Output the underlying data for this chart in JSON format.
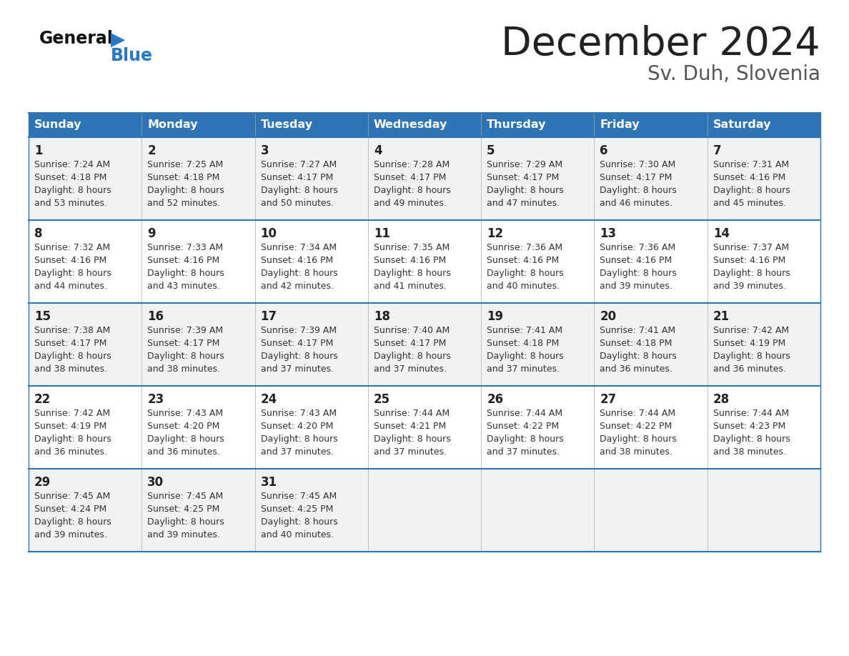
{
  "title": "December 2024",
  "subtitle": "Sv. Duh, Slovenia",
  "header_color": "#2e75b6",
  "header_text_color": "#ffffff",
  "cell_bg_odd": "#f2f2f2",
  "cell_bg_even": "#ffffff",
  "day_number_color": "#222222",
  "info_text_color": "#333333",
  "border_color": "#2e75b6",
  "separator_color": "#aaaaaa",
  "bg_color": "#ffffff",
  "logo_black": "#111111",
  "logo_blue": "#2878c8",
  "days_of_week": [
    "Sunday",
    "Monday",
    "Tuesday",
    "Wednesday",
    "Thursday",
    "Friday",
    "Saturday"
  ],
  "weeks": [
    [
      {
        "day": 1,
        "sunrise": "7:24 AM",
        "sunset": "4:18 PM",
        "daylight": "8 hours and 53 minutes."
      },
      {
        "day": 2,
        "sunrise": "7:25 AM",
        "sunset": "4:18 PM",
        "daylight": "8 hours and 52 minutes."
      },
      {
        "day": 3,
        "sunrise": "7:27 AM",
        "sunset": "4:17 PM",
        "daylight": "8 hours and 50 minutes."
      },
      {
        "day": 4,
        "sunrise": "7:28 AM",
        "sunset": "4:17 PM",
        "daylight": "8 hours and 49 minutes."
      },
      {
        "day": 5,
        "sunrise": "7:29 AM",
        "sunset": "4:17 PM",
        "daylight": "8 hours and 47 minutes."
      },
      {
        "day": 6,
        "sunrise": "7:30 AM",
        "sunset": "4:17 PM",
        "daylight": "8 hours and 46 minutes."
      },
      {
        "day": 7,
        "sunrise": "7:31 AM",
        "sunset": "4:16 PM",
        "daylight": "8 hours and 45 minutes."
      }
    ],
    [
      {
        "day": 8,
        "sunrise": "7:32 AM",
        "sunset": "4:16 PM",
        "daylight": "8 hours and 44 minutes."
      },
      {
        "day": 9,
        "sunrise": "7:33 AM",
        "sunset": "4:16 PM",
        "daylight": "8 hours and 43 minutes."
      },
      {
        "day": 10,
        "sunrise": "7:34 AM",
        "sunset": "4:16 PM",
        "daylight": "8 hours and 42 minutes."
      },
      {
        "day": 11,
        "sunrise": "7:35 AM",
        "sunset": "4:16 PM",
        "daylight": "8 hours and 41 minutes."
      },
      {
        "day": 12,
        "sunrise": "7:36 AM",
        "sunset": "4:16 PM",
        "daylight": "8 hours and 40 minutes."
      },
      {
        "day": 13,
        "sunrise": "7:36 AM",
        "sunset": "4:16 PM",
        "daylight": "8 hours and 39 minutes."
      },
      {
        "day": 14,
        "sunrise": "7:37 AM",
        "sunset": "4:16 PM",
        "daylight": "8 hours and 39 minutes."
      }
    ],
    [
      {
        "day": 15,
        "sunrise": "7:38 AM",
        "sunset": "4:17 PM",
        "daylight": "8 hours and 38 minutes."
      },
      {
        "day": 16,
        "sunrise": "7:39 AM",
        "sunset": "4:17 PM",
        "daylight": "8 hours and 38 minutes."
      },
      {
        "day": 17,
        "sunrise": "7:39 AM",
        "sunset": "4:17 PM",
        "daylight": "8 hours and 37 minutes."
      },
      {
        "day": 18,
        "sunrise": "7:40 AM",
        "sunset": "4:17 PM",
        "daylight": "8 hours and 37 minutes."
      },
      {
        "day": 19,
        "sunrise": "7:41 AM",
        "sunset": "4:18 PM",
        "daylight": "8 hours and 37 minutes."
      },
      {
        "day": 20,
        "sunrise": "7:41 AM",
        "sunset": "4:18 PM",
        "daylight": "8 hours and 36 minutes."
      },
      {
        "day": 21,
        "sunrise": "7:42 AM",
        "sunset": "4:19 PM",
        "daylight": "8 hours and 36 minutes."
      }
    ],
    [
      {
        "day": 22,
        "sunrise": "7:42 AM",
        "sunset": "4:19 PM",
        "daylight": "8 hours and 36 minutes."
      },
      {
        "day": 23,
        "sunrise": "7:43 AM",
        "sunset": "4:20 PM",
        "daylight": "8 hours and 36 minutes."
      },
      {
        "day": 24,
        "sunrise": "7:43 AM",
        "sunset": "4:20 PM",
        "daylight": "8 hours and 37 minutes."
      },
      {
        "day": 25,
        "sunrise": "7:44 AM",
        "sunset": "4:21 PM",
        "daylight": "8 hours and 37 minutes."
      },
      {
        "day": 26,
        "sunrise": "7:44 AM",
        "sunset": "4:22 PM",
        "daylight": "8 hours and 37 minutes."
      },
      {
        "day": 27,
        "sunrise": "7:44 AM",
        "sunset": "4:22 PM",
        "daylight": "8 hours and 38 minutes."
      },
      {
        "day": 28,
        "sunrise": "7:44 AM",
        "sunset": "4:23 PM",
        "daylight": "8 hours and 38 minutes."
      }
    ],
    [
      {
        "day": 29,
        "sunrise": "7:45 AM",
        "sunset": "4:24 PM",
        "daylight": "8 hours and 39 minutes."
      },
      {
        "day": 30,
        "sunrise": "7:45 AM",
        "sunset": "4:25 PM",
        "daylight": "8 hours and 39 minutes."
      },
      {
        "day": 31,
        "sunrise": "7:45 AM",
        "sunset": "4:25 PM",
        "daylight": "8 hours and 40 minutes."
      },
      null,
      null,
      null,
      null
    ]
  ],
  "title_fontsize": 40,
  "subtitle_fontsize": 20,
  "header_fontsize": 11.5,
  "day_num_fontsize": 12,
  "cell_fontsize": 9
}
